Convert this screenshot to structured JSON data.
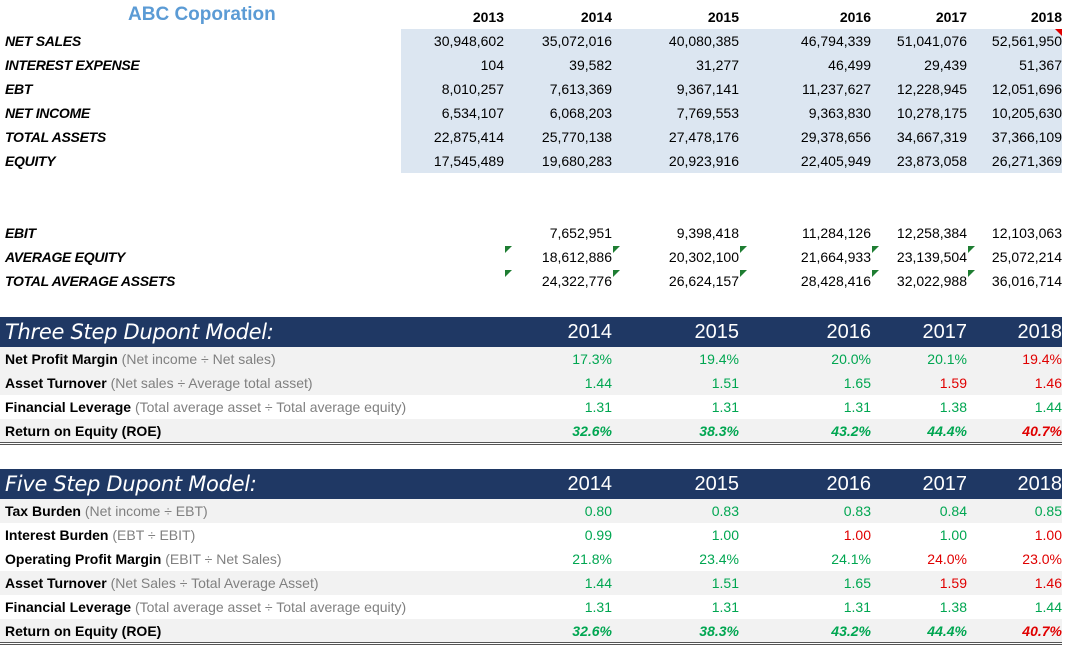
{
  "company": "ABC Coporation",
  "years_top": [
    "2013",
    "2014",
    "2015",
    "2016",
    "2017",
    "2018"
  ],
  "financials": [
    {
      "label": "NET SALES",
      "values": [
        "30,948,602",
        "35,072,016",
        "40,080,385",
        "46,794,339",
        "51,041,076",
        "52,561,950"
      ]
    },
    {
      "label": "INTEREST EXPENSE",
      "values": [
        "104",
        "39,582",
        "31,277",
        "46,499",
        "29,439",
        "51,367"
      ]
    },
    {
      "label": "EBT",
      "values": [
        "8,010,257",
        "7,613,369",
        "9,367,141",
        "11,237,627",
        "12,228,945",
        "12,051,696"
      ]
    },
    {
      "label": "NET INCOME",
      "values": [
        "6,534,107",
        "6,068,203",
        "7,769,553",
        "9,363,830",
        "10,278,175",
        "10,205,630"
      ]
    },
    {
      "label": "TOTAL ASSETS",
      "values": [
        "22,875,414",
        "25,770,138",
        "27,478,176",
        "29,378,656",
        "34,667,319",
        "37,366,109"
      ]
    },
    {
      "label": "EQUITY",
      "values": [
        "17,545,489",
        "19,680,283",
        "20,923,916",
        "22,405,949",
        "23,873,058",
        "26,271,369"
      ]
    }
  ],
  "derived": [
    {
      "label": "EBIT",
      "values": [
        "",
        "7,652,951",
        "9,398,418",
        "11,284,126",
        "12,258,384",
        "12,103,063"
      ]
    },
    {
      "label": "AVERAGE EQUITY",
      "values": [
        "",
        "18,612,886",
        "20,302,100",
        "21,664,933",
        "23,139,504",
        "25,072,214"
      ]
    },
    {
      "label": "TOTAL AVERAGE ASSETS",
      "values": [
        "",
        "24,322,776",
        "26,624,157",
        "28,428,416",
        "32,022,988",
        "36,016,714"
      ]
    }
  ],
  "three_step": {
    "title": "Three Step Dupont Model:",
    "years": [
      "2014",
      "2015",
      "2016",
      "2017",
      "2018"
    ],
    "rows": [
      {
        "name": "Net Profit Margin",
        "hint": "(Net income ÷ Net sales)",
        "values": [
          "17.3%",
          "19.4%",
          "20.0%",
          "20.1%",
          "19.4%"
        ],
        "colors": [
          "green",
          "green",
          "green",
          "green",
          "red"
        ]
      },
      {
        "name": "Asset Turnover",
        "hint": "(Net sales ÷  Average total asset)",
        "values": [
          "1.44",
          "1.51",
          "1.65",
          "1.59",
          "1.46"
        ],
        "colors": [
          "green",
          "green",
          "green",
          "red",
          "red"
        ]
      },
      {
        "name": "Financial Leverage",
        "hint": "(Total average asset ÷  Total average equity)",
        "values": [
          "1.31",
          "1.31",
          "1.31",
          "1.38",
          "1.44"
        ],
        "colors": [
          "green",
          "green",
          "green",
          "green",
          "green"
        ]
      },
      {
        "name": "Return on Equity (ROE)",
        "hint": "",
        "values": [
          "32.6%",
          "38.3%",
          "43.2%",
          "44.4%",
          "40.7%"
        ],
        "colors": [
          "green",
          "green",
          "green",
          "green",
          "red"
        ]
      }
    ]
  },
  "five_step": {
    "title": "Five Step Dupont Model:",
    "years": [
      "2014",
      "2015",
      "2016",
      "2017",
      "2018"
    ],
    "rows": [
      {
        "name": "Tax Burden",
        "hint": "(Net income ÷ EBT)",
        "values": [
          "0.80",
          "0.83",
          "0.83",
          "0.84",
          "0.85"
        ],
        "colors": [
          "green",
          "green",
          "green",
          "green",
          "green"
        ]
      },
      {
        "name": "Interest Burden",
        "hint": "(EBT ÷ EBIT)",
        "values": [
          "0.99",
          "1.00",
          "1.00",
          "1.00",
          "1.00"
        ],
        "colors": [
          "green",
          "green",
          "red",
          "green",
          "red"
        ]
      },
      {
        "name": "Operating Profit Margin",
        "hint": "(EBIT ÷ Net Sales)",
        "values": [
          "21.8%",
          "23.4%",
          "24.1%",
          "24.0%",
          "23.0%"
        ],
        "colors": [
          "green",
          "green",
          "green",
          "red",
          "red"
        ]
      },
      {
        "name": "Asset Turnover",
        "hint": "(Net Sales ÷ Total Average Asset)",
        "values": [
          "1.44",
          "1.51",
          "1.65",
          "1.59",
          "1.46"
        ],
        "colors": [
          "green",
          "green",
          "green",
          "red",
          "red"
        ]
      },
      {
        "name": "Financial Leverage",
        "hint": "(Total average asset ÷  Total average equity)",
        "values": [
          "1.31",
          "1.31",
          "1.31",
          "1.38",
          "1.44"
        ],
        "colors": [
          "green",
          "green",
          "green",
          "green",
          "green"
        ]
      },
      {
        "name": "Return on Equity (ROE)",
        "hint": "",
        "values": [
          "32.6%",
          "38.3%",
          "43.2%",
          "44.4%",
          "40.7%"
        ],
        "colors": [
          "green",
          "green",
          "green",
          "green",
          "red"
        ]
      }
    ]
  },
  "colors": {
    "navy": "#1f3864",
    "green": "#00a651",
    "red": "#e00000",
    "title_blue": "#5b9bd5",
    "input_shade": "#dce6f1"
  }
}
